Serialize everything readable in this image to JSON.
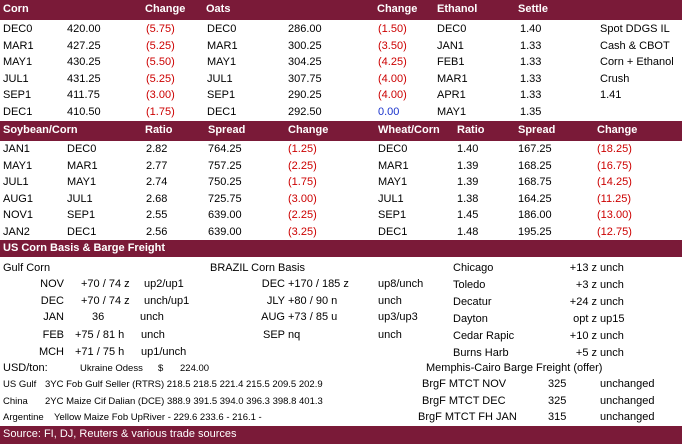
{
  "header1": {
    "corn": "Corn",
    "change": "Change",
    "oats": "Oats",
    "oats_change": "Change",
    "ethanol": "Ethanol",
    "settle": "Settle"
  },
  "corn_rows": [
    {
      "month": "DEC0",
      "price": "420.00",
      "change": "(5.75)",
      "oats_month": "DEC0",
      "oats_price": "286.00",
      "oats_change": "(1.50)",
      "eth_month": "DEC0",
      "eth_settle": "1.40",
      "extra": "Spot DDGS IL",
      "extra2": ""
    },
    {
      "month": "MAR1",
      "price": "427.25",
      "change": "(5.25)",
      "oats_month": "MAR1",
      "oats_price": "300.25",
      "oats_change": "(3.50)",
      "eth_month": "JAN1",
      "eth_settle": "1.33",
      "extra": "Cash & CBOT",
      "extra2": ""
    },
    {
      "month": "MAY1",
      "price": "430.25",
      "change": "(5.50)",
      "oats_month": "MAY1",
      "oats_price": "304.25",
      "oats_change": "(4.25)",
      "eth_month": "FEB1",
      "eth_settle": "1.33",
      "extra": "Corn + Ethanol",
      "extra2": ""
    },
    {
      "month": "JUL1",
      "price": "431.25",
      "change": "(5.25)",
      "oats_month": "JUL1",
      "oats_price": "307.75",
      "oats_change": "(4.00)",
      "eth_month": "MAR1",
      "eth_settle": "1.33",
      "extra": "Crush",
      "extra2": ""
    },
    {
      "month": "SEP1",
      "price": "411.75",
      "change": "(3.00)",
      "oats_month": "SEP1",
      "oats_price": "290.25",
      "oats_change": "(4.00)",
      "eth_month": "APR1",
      "eth_settle": "1.33",
      "extra": "1.41",
      "extra2": ""
    },
    {
      "month": "DEC1",
      "price": "410.50",
      "change": "(1.75)",
      "oats_month": "DEC1",
      "oats_price": "292.50",
      "oats_change": "0.00",
      "eth_month": "MAY1",
      "eth_settle": "1.35",
      "extra": "",
      "extra2": ""
    }
  ],
  "header2": {
    "soy_corn": "Soybean/Corn",
    "ratio": "Ratio",
    "spread": "Spread",
    "change": "Change",
    "wheat_corn": "Wheat/Corn",
    "ratio2": "Ratio",
    "spread2": "Spread",
    "change2": "Change"
  },
  "spread_rows": [
    {
      "a": "JAN1",
      "b": "DEC0",
      "ratio": "2.82",
      "spread": "764.25",
      "change": "(1.25)",
      "wb": "DEC0",
      "wratio": "1.40",
      "wspread": "167.25",
      "wchange": "(18.25)"
    },
    {
      "a": "MAY1",
      "b": "MAR1",
      "ratio": "2.77",
      "spread": "757.25",
      "change": "(2.25)",
      "wb": "MAR1",
      "wratio": "1.39",
      "wspread": "168.25",
      "wchange": "(16.75)"
    },
    {
      "a": "JUL1",
      "b": "MAY1",
      "ratio": "2.74",
      "spread": "750.25",
      "change": "(1.75)",
      "wb": "MAY1",
      "wratio": "1.39",
      "wspread": "168.75",
      "wchange": "(14.25)"
    },
    {
      "a": "AUG1",
      "b": "JUL1",
      "ratio": "2.68",
      "spread": "725.75",
      "change": "(3.00)",
      "wb": "JUL1",
      "wratio": "1.38",
      "wspread": "164.25",
      "wchange": "(11.25)"
    },
    {
      "a": "NOV1",
      "b": "SEP1",
      "ratio": "2.55",
      "spread": "639.00",
      "change": "(2.25)",
      "wb": "SEP1",
      "wratio": "1.45",
      "wspread": "186.00",
      "wchange": "(13.00)"
    },
    {
      "a": "JAN2",
      "b": "DEC1",
      "ratio": "2.56",
      "spread": "639.00",
      "change": "(3.25)",
      "wb": "DEC1",
      "wratio": "1.48",
      "wspread": "195.25",
      "wchange": "(12.75)"
    }
  ],
  "header3": {
    "title": "US Corn Basis & Barge Freight"
  },
  "basis": {
    "gulf_title": "Gulf Corn",
    "brazil_title": "BRAZIL Corn Basis",
    "gulf_rows": [
      {
        "m": "NOV",
        "v": "+70 / 74 z",
        "c": "up2/up1"
      },
      {
        "m": "DEC",
        "v": "+70 / 74 z",
        "c": "unch/up1"
      },
      {
        "m": "JAN",
        "v": "36",
        "c": "unch"
      },
      {
        "m": "FEB",
        "v": "+75 / 81 h",
        "c": "unch"
      },
      {
        "m": "MCH",
        "v": "+71 / 75 h",
        "c": "up1/unch"
      }
    ],
    "brazil_rows": [
      {
        "m": "DEC",
        "v": "+170 / 185 z",
        "c": "up8/unch"
      },
      {
        "m": "JLY",
        "v": "+80 / 90 n",
        "c": "unch"
      },
      {
        "m": "AUG",
        "v": "+73 / 85 u",
        "c": "up3/up3"
      },
      {
        "m": "SEP",
        "v": "nq",
        "c": "unch"
      }
    ],
    "city_rows": [
      {
        "city": "Chicago",
        "v": "+13 z",
        "c": "unch"
      },
      {
        "city": "Toledo",
        "v": "+3 z",
        "c": "unch"
      },
      {
        "city": "Decatur",
        "v": "+24 z",
        "c": "unch"
      },
      {
        "city": "Dayton",
        "v": "opt z",
        "c": "up15"
      },
      {
        "city": "Cedar Rapic",
        "v": "+10 z",
        "c": "unch"
      },
      {
        "city": "Burns Harb",
        "v": "+5 z",
        "c": "unch"
      }
    ]
  },
  "bottom": {
    "usd_ton": "USD/ton:",
    "ukraine": "Ukraine Odess",
    "ukraine_cur": "$",
    "ukraine_val": "224.00",
    "memphis": "Memphis-Cairo Barge Freight (offer)",
    "rows": [
      {
        "label": "US Gulf",
        "desc": "3YC Fob Gulf Seller (RTRS) 218.5  218.5  221.4  215.5  209.5  202.9"
      },
      {
        "label": "China",
        "desc": "2YC Maize Cif Dalian (DCE) 388.9  391.5  394.0  396.3  398.8  401.3"
      },
      {
        "label": "Argentine",
        "desc": "Yellow Maize Fob UpRiver  -  229.6  233.6   -   216.1   -"
      }
    ],
    "barge_rows": [
      {
        "label": "BrgF MTCT NOV",
        "v": "325",
        "c": "unchanged"
      },
      {
        "label": "BrgF MTCT DEC",
        "v": "325",
        "c": "unchanged"
      },
      {
        "label": "BrgF MTCT FH JAN",
        "v": "315",
        "c": "unchanged"
      }
    ],
    "source": "Source: FI, DJ, Reuters & various trade sources"
  },
  "colors": {
    "header_bg": "#7a1a38",
    "negative": "#cc0000",
    "zero": "#1a33cc"
  }
}
